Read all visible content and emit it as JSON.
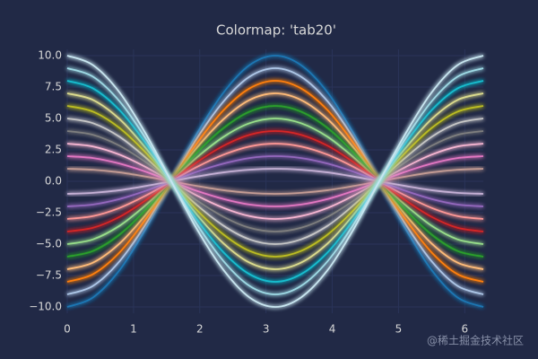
{
  "chart_data": {
    "type": "line",
    "title": "Colormap: 'tab20'",
    "x": [
      0,
      0.39,
      0.79,
      1.18,
      1.57,
      1.96,
      2.36,
      2.75,
      3.14,
      3.53,
      3.93,
      4.32,
      4.71,
      5.11,
      5.5,
      5.89,
      6.28
    ],
    "series": [
      {
        "color": "#1f77b4",
        "values": [
          -10,
          -9.24,
          -7.07,
          -3.83,
          0,
          3.83,
          7.07,
          9.24,
          10,
          9.24,
          7.07,
          3.83,
          0,
          -3.83,
          -7.07,
          -9.24,
          -10
        ]
      },
      {
        "color": "#aec7e8",
        "values": [
          -9,
          -8.32,
          -6.36,
          -3.44,
          0,
          3.44,
          6.36,
          8.32,
          9,
          8.32,
          6.36,
          3.44,
          0,
          -3.44,
          -6.36,
          -8.32,
          -9
        ]
      },
      {
        "color": "#ff7f0e",
        "values": [
          -8,
          -7.39,
          -5.66,
          -3.06,
          0,
          3.06,
          5.66,
          7.39,
          8,
          7.39,
          5.66,
          3.06,
          0,
          -3.06,
          -5.66,
          -7.39,
          -8
        ]
      },
      {
        "color": "#ffbb78",
        "values": [
          -7,
          -6.47,
          -4.95,
          -2.68,
          0,
          2.68,
          4.95,
          6.47,
          7,
          6.47,
          4.95,
          2.68,
          0,
          -2.68,
          -4.95,
          -6.47,
          -7
        ]
      },
      {
        "color": "#2ca02c",
        "values": [
          -6,
          -5.54,
          -4.24,
          -2.3,
          0,
          2.3,
          4.24,
          5.54,
          6,
          5.54,
          4.24,
          2.3,
          0,
          -2.3,
          -4.24,
          -5.54,
          -6
        ]
      },
      {
        "color": "#98df8a",
        "values": [
          -5,
          -4.62,
          -3.54,
          -1.91,
          0,
          1.91,
          3.54,
          4.62,
          5,
          4.62,
          3.54,
          1.91,
          0,
          -1.91,
          -3.54,
          -4.62,
          -5
        ]
      },
      {
        "color": "#d62728",
        "values": [
          -4,
          -3.7,
          -2.83,
          -1.53,
          0,
          1.53,
          2.83,
          3.7,
          4,
          3.7,
          2.83,
          1.53,
          0,
          -1.53,
          -2.83,
          -3.7,
          -4
        ]
      },
      {
        "color": "#ff9896",
        "values": [
          -3,
          -2.77,
          -2.12,
          -1.15,
          0,
          1.15,
          2.12,
          2.77,
          3,
          2.77,
          2.12,
          1.15,
          0,
          -1.15,
          -2.12,
          -2.77,
          -3
        ]
      },
      {
        "color": "#9467bd",
        "values": [
          -2,
          -1.85,
          -1.41,
          -0.77,
          0,
          0.77,
          1.41,
          1.85,
          2,
          1.85,
          1.41,
          0.77,
          0,
          -0.77,
          -1.41,
          -1.85,
          -2
        ]
      },
      {
        "color": "#c5b0d5",
        "values": [
          -1,
          -0.92,
          -0.71,
          -0.38,
          0,
          0.38,
          0.71,
          0.92,
          1,
          0.92,
          0.71,
          0.38,
          0,
          -0.38,
          -0.71,
          -0.92,
          -1
        ]
      },
      {
        "color": "#8c564b",
        "values": [
          0,
          0,
          0,
          0,
          0,
          0,
          0,
          0,
          0,
          0,
          0,
          0,
          0,
          0,
          0,
          0,
          0
        ]
      },
      {
        "color": "#c49c94",
        "values": [
          1,
          0.92,
          0.71,
          0.38,
          0,
          -0.38,
          -0.71,
          -0.92,
          -1,
          -0.92,
          -0.71,
          -0.38,
          0,
          0.38,
          0.71,
          0.92,
          1
        ]
      },
      {
        "color": "#e377c2",
        "values": [
          2,
          1.85,
          1.41,
          0.77,
          0,
          -0.77,
          -1.41,
          -1.85,
          -2,
          -1.85,
          -1.41,
          -0.77,
          0,
          0.77,
          1.41,
          1.85,
          2
        ]
      },
      {
        "color": "#f7b6d2",
        "values": [
          3,
          2.77,
          2.12,
          1.15,
          0,
          -1.15,
          -2.12,
          -2.77,
          -3,
          -2.77,
          -2.12,
          -1.15,
          0,
          1.15,
          2.12,
          2.77,
          3
        ]
      },
      {
        "color": "#7f7f7f",
        "values": [
          4,
          3.7,
          2.83,
          1.53,
          0,
          -1.53,
          -2.83,
          -3.7,
          -4,
          -3.7,
          -2.83,
          -1.53,
          0,
          1.53,
          2.83,
          3.7,
          4
        ]
      },
      {
        "color": "#c7c7c7",
        "values": [
          5,
          4.62,
          3.54,
          1.91,
          0,
          -1.91,
          -3.54,
          -4.62,
          -5,
          -4.62,
          -3.54,
          -1.91,
          0,
          1.91,
          3.54,
          4.62,
          5
        ]
      },
      {
        "color": "#bcbd22",
        "values": [
          6,
          5.54,
          4.24,
          2.3,
          0,
          -2.3,
          -4.24,
          -5.54,
          -6,
          -5.54,
          -4.24,
          -2.3,
          0,
          2.3,
          4.24,
          5.54,
          6
        ]
      },
      {
        "color": "#dbdb8d",
        "values": [
          7,
          6.47,
          4.95,
          2.68,
          0,
          -2.68,
          -4.95,
          -6.47,
          -7,
          -6.47,
          -4.95,
          -2.68,
          0,
          2.68,
          4.95,
          6.47,
          7
        ]
      },
      {
        "color": "#17becf",
        "values": [
          8,
          7.39,
          5.66,
          3.06,
          0,
          -3.06,
          -5.66,
          -7.39,
          -8,
          -7.39,
          -5.66,
          -3.06,
          0,
          3.06,
          5.66,
          7.39,
          8
        ]
      },
      {
        "color": "#9edae5",
        "values": [
          9,
          8.32,
          6.36,
          3.44,
          0,
          -3.44,
          -6.36,
          -8.32,
          -9,
          -8.32,
          -6.36,
          -3.44,
          0,
          3.44,
          6.36,
          8.32,
          9
        ]
      },
      {
        "color": "#c8e6f0",
        "values": [
          10,
          9.24,
          7.07,
          3.83,
          0,
          -3.83,
          -7.07,
          -9.24,
          -10,
          -9.24,
          -7.07,
          -3.83,
          0,
          3.83,
          7.07,
          9.24,
          10
        ]
      }
    ],
    "xlim": [
      0,
      6.28
    ],
    "ylim": [
      -10.5,
      10.5
    ],
    "xticks": [
      0,
      1,
      2,
      3,
      4,
      5,
      6
    ],
    "yticks": [
      {
        "value": -10,
        "label": "−10.0"
      },
      {
        "value": -7.5,
        "label": "−7.5"
      },
      {
        "value": -5,
        "label": "−5.0"
      },
      {
        "value": -2.5,
        "label": "−2.5"
      },
      {
        "value": 0,
        "label": "0.0"
      },
      {
        "value": 2.5,
        "label": "2.5"
      },
      {
        "value": 5,
        "label": "5.0"
      },
      {
        "value": 7.5,
        "label": "7.5"
      },
      {
        "value": 10,
        "label": "10.0"
      }
    ],
    "grid": true,
    "watermark": "@稀土掘金技术社区"
  }
}
